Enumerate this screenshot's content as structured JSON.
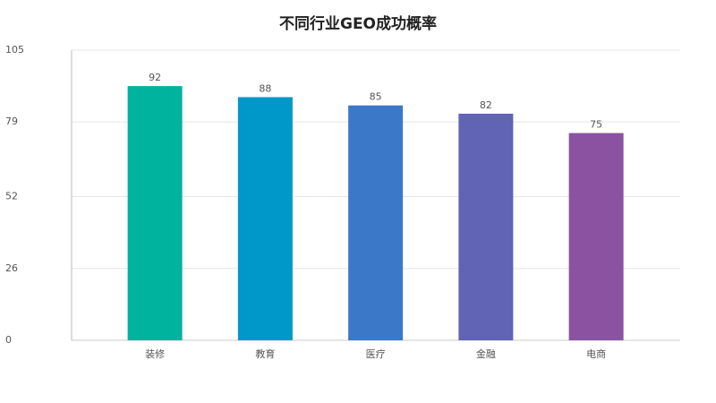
{
  "chart_data": {
    "type": "bar",
    "title": "不同行业GEO成功概率",
    "categories": [
      "装修",
      "教育",
      "医疗",
      "金融",
      "电商"
    ],
    "values": [
      92,
      88,
      85,
      82,
      75
    ],
    "colors": [
      "#00b39f",
      "#0097c9",
      "#3b78c8",
      "#6163b5",
      "#8b52a1"
    ],
    "ylim": [
      0,
      105
    ],
    "yticks": [
      0,
      26,
      52,
      79,
      105
    ],
    "grid": true
  }
}
